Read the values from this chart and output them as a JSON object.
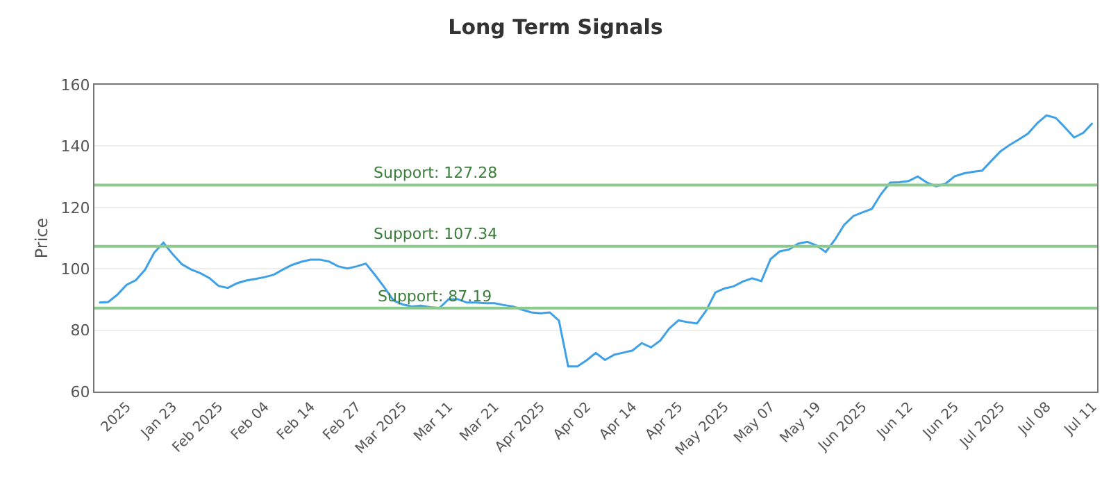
{
  "chart_data": {
    "type": "line",
    "title": "Long Term Signals",
    "ylabel": "Price",
    "categories": [
      null,
      null,
      null,
      "2025",
      null,
      null,
      null,
      null,
      "Jan 23",
      null,
      null,
      null,
      null,
      "Feb 2025",
      null,
      null,
      null,
      null,
      "Feb 04",
      null,
      null,
      null,
      null,
      "Feb 14",
      null,
      null,
      null,
      null,
      "Feb 27",
      null,
      null,
      null,
      null,
      "Mar 2025",
      null,
      null,
      null,
      null,
      "Mar 11",
      null,
      null,
      null,
      null,
      "Mar 21",
      null,
      null,
      null,
      null,
      "Apr 2025",
      null,
      null,
      null,
      null,
      "Apr 02",
      null,
      null,
      null,
      null,
      "Apr 14",
      null,
      null,
      null,
      null,
      "Apr 25",
      null,
      null,
      null,
      null,
      "May 2025",
      null,
      null,
      null,
      null,
      "May 07",
      null,
      null,
      null,
      null,
      "May 19",
      null,
      null,
      null,
      null,
      "Jun 2025",
      null,
      null,
      null,
      null,
      "Jun 12",
      null,
      null,
      null,
      null,
      "Jun 25",
      null,
      null,
      null,
      null,
      "Jul 2025",
      null,
      null,
      null,
      null,
      "Jul 08",
      null,
      null,
      null,
      null,
      "Jul 11"
    ],
    "series": [
      {
        "color": "#3ea0e6",
        "values": [
          89,
          89.2,
          91.6,
          94.8,
          96.3,
          99.7,
          105.3,
          108.5,
          104.8,
          101.5,
          99.8,
          98.6,
          97,
          94.4,
          93.8,
          95.3,
          96.2,
          96.7,
          97.3,
          98.1,
          99.8,
          101.3,
          102.3,
          103,
          103,
          102.4,
          100.8,
          100.1,
          100.8,
          101.7,
          98,
          94,
          89.7,
          88.4,
          87.7,
          88,
          87.5,
          87.2,
          90.1,
          90.1,
          89,
          89,
          88.8,
          88.8,
          88.2,
          87.7,
          86.7,
          85.8,
          85.5,
          85.8,
          83.1,
          68.2,
          68.2,
          70.2,
          72.6,
          70.3,
          72,
          72.7,
          73.4,
          75.8,
          74.4,
          76.6,
          80.6,
          83.2,
          82.6,
          82.2,
          86.4,
          92.3,
          93.6,
          94.3,
          95.9,
          96.9,
          96,
          103.2,
          105.7,
          106.3,
          108.2,
          108.8,
          107.6,
          105.5,
          109.5,
          114.3,
          117.2,
          118.4,
          119.5,
          124.3,
          128.1,
          128.2,
          128.6,
          130.1,
          128.1,
          126.9,
          127.7,
          130.1,
          131.1,
          131.6,
          132,
          135.2,
          138.3,
          140.4,
          142.2,
          144.1,
          147.5,
          150,
          149.2,
          146.1,
          142.8,
          144.3,
          147.5
        ]
      }
    ],
    "ylim": [
      60,
      160
    ],
    "yticks": [
      60,
      80,
      100,
      120,
      140,
      160
    ],
    "grid": "y",
    "marker": "none",
    "line_style": "solid",
    "ref_lines": [
      {
        "axis": "y",
        "value": 127.28,
        "label": "Support: 127.28",
        "color": "#8cc98c"
      },
      {
        "axis": "y",
        "value": 107.34,
        "label": "Support: 107.34",
        "color": "#8cc98c"
      },
      {
        "axis": "y",
        "value": 87.19,
        "label": "Support: 87.19",
        "color": "#8cc98c"
      }
    ]
  }
}
